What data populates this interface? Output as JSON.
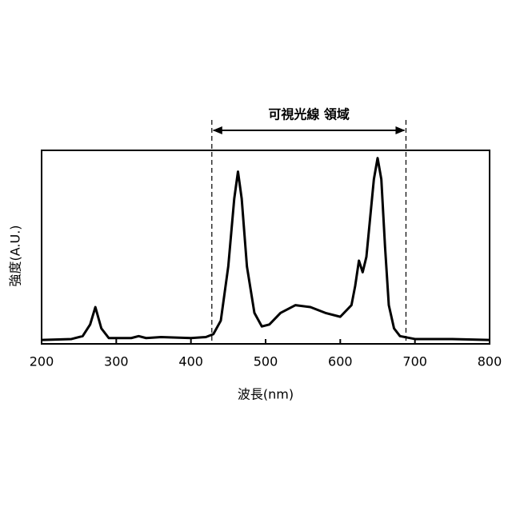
{
  "chart_data": {
    "type": "line",
    "xlabel": "波長(nm)",
    "ylabel": "強度(A.U.)",
    "x": [
      200,
      240,
      255,
      265,
      272,
      280,
      290,
      320,
      330,
      340,
      360,
      400,
      420,
      430,
      440,
      450,
      458,
      463,
      468,
      475,
      485,
      495,
      505,
      520,
      540,
      560,
      580,
      600,
      615,
      620,
      625,
      630,
      635,
      640,
      645,
      650,
      655,
      660,
      665,
      672,
      680,
      700,
      750,
      800
    ],
    "values": [
      2,
      2.5,
      4,
      10,
      19,
      8,
      3,
      3,
      4,
      3,
      3.5,
      3,
      3.5,
      5,
      12,
      40,
      75,
      89,
      75,
      40,
      16,
      9,
      10,
      16,
      20,
      19,
      16,
      14,
      20,
      30,
      43,
      37,
      45,
      65,
      85,
      96,
      85,
      50,
      20,
      8,
      4,
      2.5,
      2.5,
      2
    ],
    "color": "#000000",
    "xlim": [
      200,
      800
    ],
    "xticks": [
      200,
      300,
      400,
      500,
      600,
      700,
      800
    ],
    "ylim": [
      0,
      100
    ],
    "region": {
      "label": "可視光線 領域",
      "x": [
        428,
        688
      ]
    }
  }
}
